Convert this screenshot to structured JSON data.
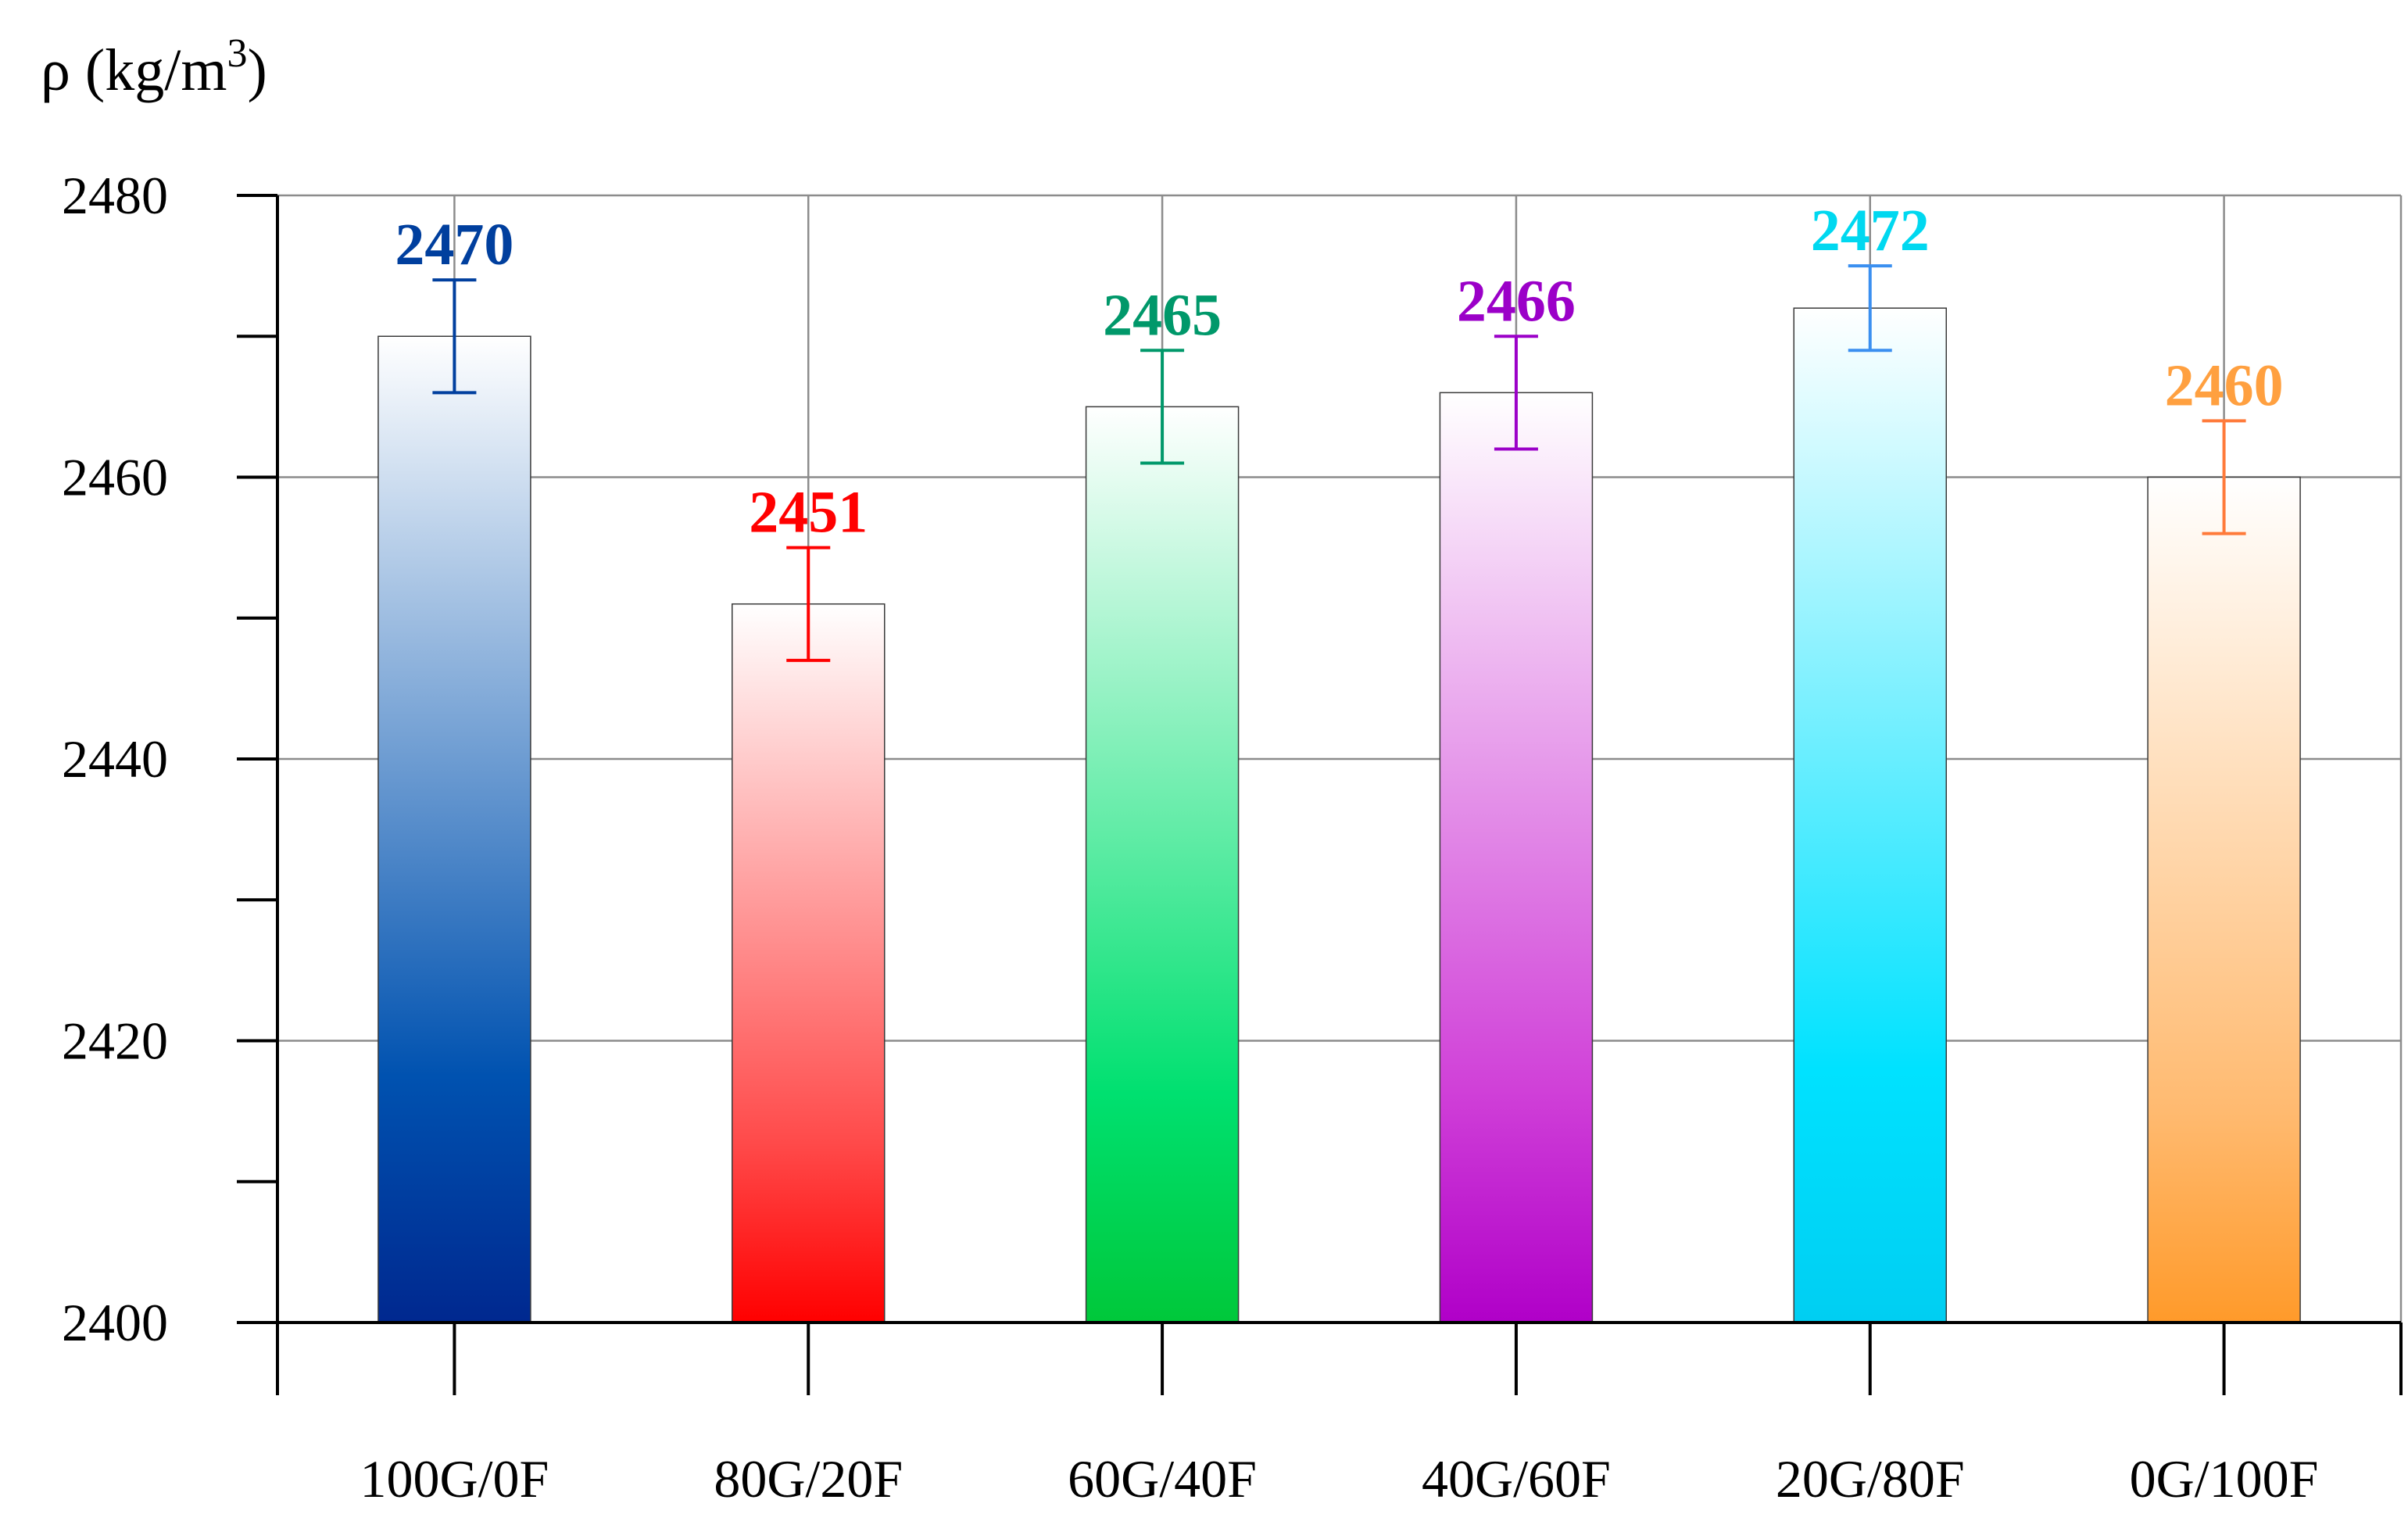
{
  "chart_data": {
    "type": "bar",
    "ylabel": "ρ (kg/m3)",
    "ylabel_parts": {
      "main": "ρ (kg/m",
      "superscript": "3",
      "close": ")"
    },
    "ylim": [
      2400,
      2480
    ],
    "yticks_major": [
      2400,
      2420,
      2440,
      2460,
      2480
    ],
    "yticks_minor": [
      2410,
      2430,
      2450,
      2470
    ],
    "grid": true,
    "categories": [
      "100G/0F",
      "80G/20F",
      "60G/40F",
      "40G/60F",
      "20G/80F",
      "0G/100F"
    ],
    "values": [
      2470,
      2451,
      2465,
      2466,
      2472,
      2460
    ],
    "error": [
      4,
      4,
      4,
      4,
      3,
      4
    ],
    "value_labels": [
      "2470",
      "2451",
      "2465",
      "2466",
      "2472",
      "2460"
    ],
    "colors": {
      "bar_bottom": [
        "#00288f",
        "#ff0000",
        "#00c83a",
        "#b000c8",
        "#00cef2",
        "#ff9a2a"
      ],
      "bar_mid": [
        "#0052b0",
        "#ff4a4a",
        "#00e070",
        "#d040d8",
        "#00e2ff",
        "#ffba70"
      ],
      "label": [
        "#003f9e",
        "#ff0000",
        "#00986a",
        "#9b00c8",
        "#00d8f0",
        "#ffa040"
      ],
      "errorbar": [
        "#003f9e",
        "#ff0000",
        "#00986a",
        "#9b00c8",
        "#3a8ff0",
        "#ff7a3a"
      ]
    }
  }
}
